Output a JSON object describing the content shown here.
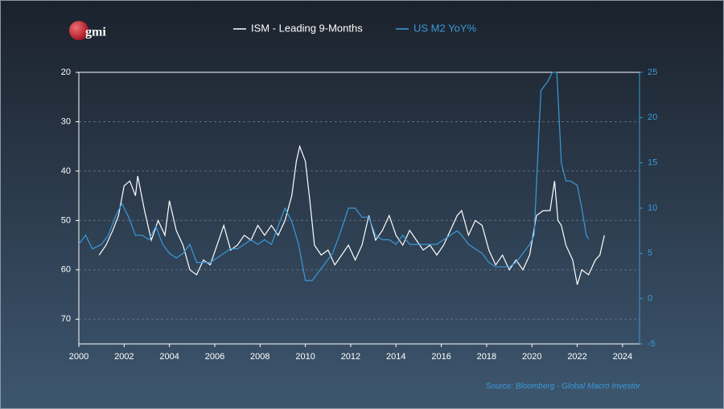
{
  "chart_data": {
    "type": "line",
    "logo": "gmi",
    "source": "Source: Bloomberg - Global Macro Investor",
    "xlim": [
      2000,
      2024.75
    ],
    "xticks": [
      2000,
      2002,
      2004,
      2006,
      2008,
      2010,
      2012,
      2014,
      2016,
      2018,
      2020,
      2022,
      2024
    ],
    "ylim": [
      20,
      75
    ],
    "y_inverted": true,
    "yticks": [
      20,
      30,
      40,
      50,
      60,
      70
    ],
    "y2lim": [
      -5,
      25
    ],
    "y2ticks": [
      25,
      20,
      15,
      10,
      5,
      0,
      -5
    ],
    "grid": true,
    "series": [
      {
        "name": "ISM - Leading 9-Months",
        "color": "#ffffff",
        "axis": "y",
        "x": [
          2000.9,
          2001.2,
          2001.5,
          2001.75,
          2002.0,
          2002.25,
          2002.5,
          2002.6,
          2002.9,
          2003.2,
          2003.5,
          2003.8,
          2004.0,
          2004.3,
          2004.6,
          2004.9,
          2005.2,
          2005.5,
          2005.8,
          2006.1,
          2006.4,
          2006.7,
          2007.0,
          2007.3,
          2007.6,
          2007.9,
          2008.2,
          2008.5,
          2008.8,
          2009.1,
          2009.4,
          2009.6,
          2009.75,
          2010.0,
          2010.2,
          2010.4,
          2010.7,
          2011.0,
          2011.3,
          2011.6,
          2011.9,
          2012.2,
          2012.5,
          2012.8,
          2013.1,
          2013.4,
          2013.7,
          2014.0,
          2014.3,
          2014.6,
          2014.9,
          2015.2,
          2015.5,
          2015.8,
          2016.1,
          2016.4,
          2016.7,
          2016.9,
          2017.2,
          2017.5,
          2017.8,
          2018.1,
          2018.4,
          2018.7,
          2019.0,
          2019.3,
          2019.6,
          2019.9,
          2020.2,
          2020.5,
          2020.8,
          2021.0,
          2021.15,
          2021.3,
          2021.5,
          2021.8,
          2022.0,
          2022.2,
          2022.5,
          2022.8,
          2023.0,
          2023.2
        ],
        "values": [
          57,
          55,
          52,
          49,
          43,
          42,
          45,
          41,
          48,
          54,
          50,
          53,
          46,
          52,
          55,
          60,
          61,
          58,
          59,
          55,
          51,
          56,
          55,
          53,
          54,
          51,
          53,
          51,
          53,
          50,
          45,
          38,
          35,
          38,
          46,
          55,
          57,
          56,
          59,
          57,
          55,
          58,
          55,
          49,
          54,
          52,
          49,
          53,
          55,
          52,
          54,
          56,
          55,
          57,
          55,
          52,
          49,
          48,
          53,
          50,
          51,
          56,
          59,
          57,
          60,
          58,
          60,
          57,
          49,
          48,
          48,
          42,
          50,
          51,
          55,
          58,
          63,
          60,
          61,
          58,
          57,
          53
        ]
      },
      {
        "name": "US M2 YoY%",
        "color": "#3a9ad9",
        "axis": "y2",
        "x": [
          2000.0,
          2000.3,
          2000.6,
          2001.0,
          2001.3,
          2001.6,
          2001.9,
          2002.2,
          2002.5,
          2002.8,
          2003.1,
          2003.4,
          2003.7,
          2004.0,
          2004.3,
          2004.6,
          2004.9,
          2005.2,
          2005.5,
          2005.8,
          2006.1,
          2006.4,
          2006.7,
          2007.0,
          2007.3,
          2007.6,
          2007.9,
          2008.2,
          2008.5,
          2008.8,
          2009.1,
          2009.4,
          2009.7,
          2010.0,
          2010.3,
          2010.6,
          2010.9,
          2011.2,
          2011.5,
          2011.9,
          2012.2,
          2012.5,
          2012.8,
          2013.1,
          2013.4,
          2013.7,
          2014.0,
          2014.3,
          2014.6,
          2014.9,
          2015.2,
          2015.5,
          2015.8,
          2016.1,
          2016.4,
          2016.7,
          2016.9,
          2017.2,
          2017.5,
          2017.8,
          2018.1,
          2018.4,
          2018.7,
          2019.0,
          2019.3,
          2019.6,
          2019.9,
          2020.1,
          2020.3,
          2020.4,
          2020.7,
          2020.9,
          2021.1,
          2021.3,
          2021.5,
          2021.7,
          2022.0,
          2022.2,
          2022.4,
          2022.5
        ],
        "values": [
          6,
          7,
          5.5,
          6,
          7,
          9,
          10.5,
          9,
          7,
          7,
          6.5,
          8,
          6,
          5,
          4.5,
          5,
          6,
          4,
          4,
          4,
          4.5,
          5,
          5.5,
          5.5,
          6,
          6.5,
          6,
          6.5,
          6,
          8,
          10,
          8.5,
          6,
          2,
          2,
          3,
          4,
          5,
          7,
          10,
          10,
          9,
          9,
          7,
          6.5,
          6.5,
          6,
          7,
          6,
          6,
          6,
          6,
          6,
          6.5,
          7,
          7.5,
          7,
          6,
          5.5,
          5,
          4,
          3.5,
          3.5,
          3.5,
          4,
          5,
          6,
          7,
          18,
          23,
          24,
          25,
          25,
          15,
          13,
          13,
          12.5,
          10,
          7,
          6.6
        ]
      }
    ]
  }
}
